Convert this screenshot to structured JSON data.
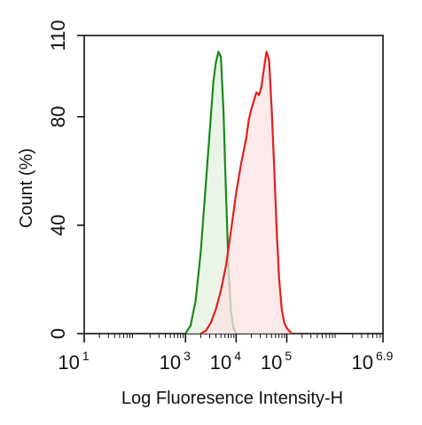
{
  "chart_data": {
    "type": "area",
    "title": "",
    "xlabel": "Log Fluoresence Intensity-H",
    "ylabel": "Count  (%)",
    "x_scale": "log",
    "xlim": [
      10,
      7943282
    ],
    "ylim": [
      0,
      110
    ],
    "y_ticks": [
      {
        "value": 0,
        "label": "0"
      },
      {
        "value": 40,
        "label": "40"
      },
      {
        "value": 80,
        "label": "80"
      },
      {
        "value": 110,
        "label": "110"
      }
    ],
    "x_ticks": [
      {
        "value": 10,
        "base": "10",
        "exp": "1"
      },
      {
        "value": 1000,
        "base": "10",
        "exp": "3"
      },
      {
        "value": 10000,
        "base": "10",
        "exp": "4"
      },
      {
        "value": 100000,
        "base": "10",
        "exp": "5"
      },
      {
        "value": 7943282,
        "base": "10",
        "exp": "6.9"
      }
    ],
    "grid": false,
    "series": [
      {
        "color": "#1a8a1a",
        "fill": "#e3f1e0",
        "x": [
          1000,
          1260,
          1580,
          2000,
          2510,
          3160,
          3550,
          3980,
          4470,
          5010,
          5620,
          6310,
          7080,
          7940,
          8910,
          10000
        ],
        "y": [
          0,
          3,
          12,
          30,
          55,
          80,
          93,
          100,
          104,
          102,
          82,
          52,
          24,
          8,
          2,
          0
        ]
      },
      {
        "color": "#e02020",
        "fill": "#fbe1e3",
        "x": [
          2000,
          2510,
          3160,
          3980,
          5010,
          6310,
          7940,
          10000,
          12600,
          15800,
          17800,
          20000,
          22400,
          25100,
          28200,
          31600,
          35500,
          39800,
          44700,
          50100,
          56200,
          63100,
          70800,
          79400,
          89100,
          100000,
          112000,
          126000
        ],
        "y": [
          0,
          1,
          4,
          9,
          16,
          25,
          38,
          52,
          63,
          72,
          79,
          83,
          86,
          89,
          88,
          91,
          98,
          104,
          101,
          84,
          62,
          38,
          20,
          9,
          4,
          2,
          1,
          0
        ]
      }
    ]
  }
}
